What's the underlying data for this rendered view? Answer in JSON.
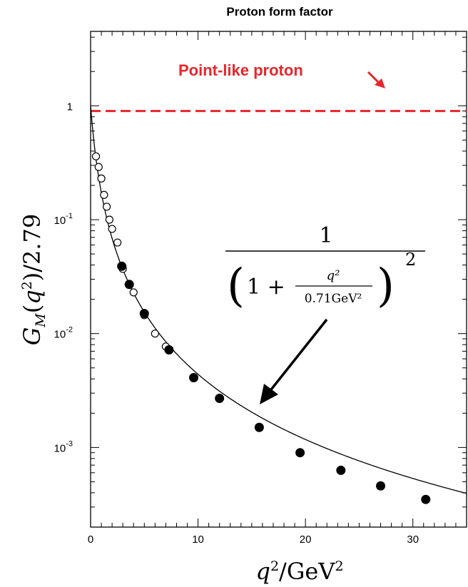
{
  "chart_data": {
    "type": "scatter",
    "title": "Proton form factor",
    "xlabel": "q²/GeV²",
    "ylabel": "G_M(q²)/2.79",
    "x_ticks": [
      "0",
      "10",
      "20",
      "30"
    ],
    "y_ticks": [
      {
        "value": 1,
        "base": "1",
        "exp": ""
      },
      {
        "value": 0.1,
        "base": "10",
        "exp": "-1"
      },
      {
        "value": 0.01,
        "base": "10",
        "exp": "-2"
      },
      {
        "value": 0.001,
        "base": "10",
        "exp": "-3"
      }
    ],
    "xlim": [
      0,
      35
    ],
    "ylim": [
      0.0002,
      4.5
    ],
    "yscale": "log",
    "grid": false,
    "point_like_level": 0.9,
    "annotations": {
      "point_like": "Point-like proton",
      "formula_numerator": "1",
      "formula_q2": "q²",
      "formula_denominator": "0.71GeV²",
      "formula_one": "1 +",
      "formula_exponent": "2"
    },
    "series": [
      {
        "marker": "open-circle",
        "x": [
          0.5,
          0.75,
          1.0,
          1.25,
          1.5,
          1.75,
          2.0,
          2.5,
          3.0,
          4.0,
          5.0,
          6.0,
          7.0
        ],
        "y": [
          0.36,
          0.29,
          0.23,
          0.165,
          0.13,
          0.1,
          0.083,
          0.063,
          0.037,
          0.023,
          0.0145,
          0.01,
          0.0077
        ]
      },
      {
        "marker": "filled-circle",
        "x": [
          2.9,
          3.6,
          5.0,
          7.3,
          9.6,
          12.0,
          15.7,
          19.5,
          23.3,
          27.0,
          31.2
        ],
        "y": [
          0.039,
          0.027,
          0.015,
          0.0072,
          0.0041,
          0.0027,
          0.0015,
          0.0009,
          0.00063,
          0.00046,
          0.00035
        ]
      },
      {
        "marker": "line",
        "formula": "dipole",
        "lambda2": 0.71
      }
    ]
  }
}
